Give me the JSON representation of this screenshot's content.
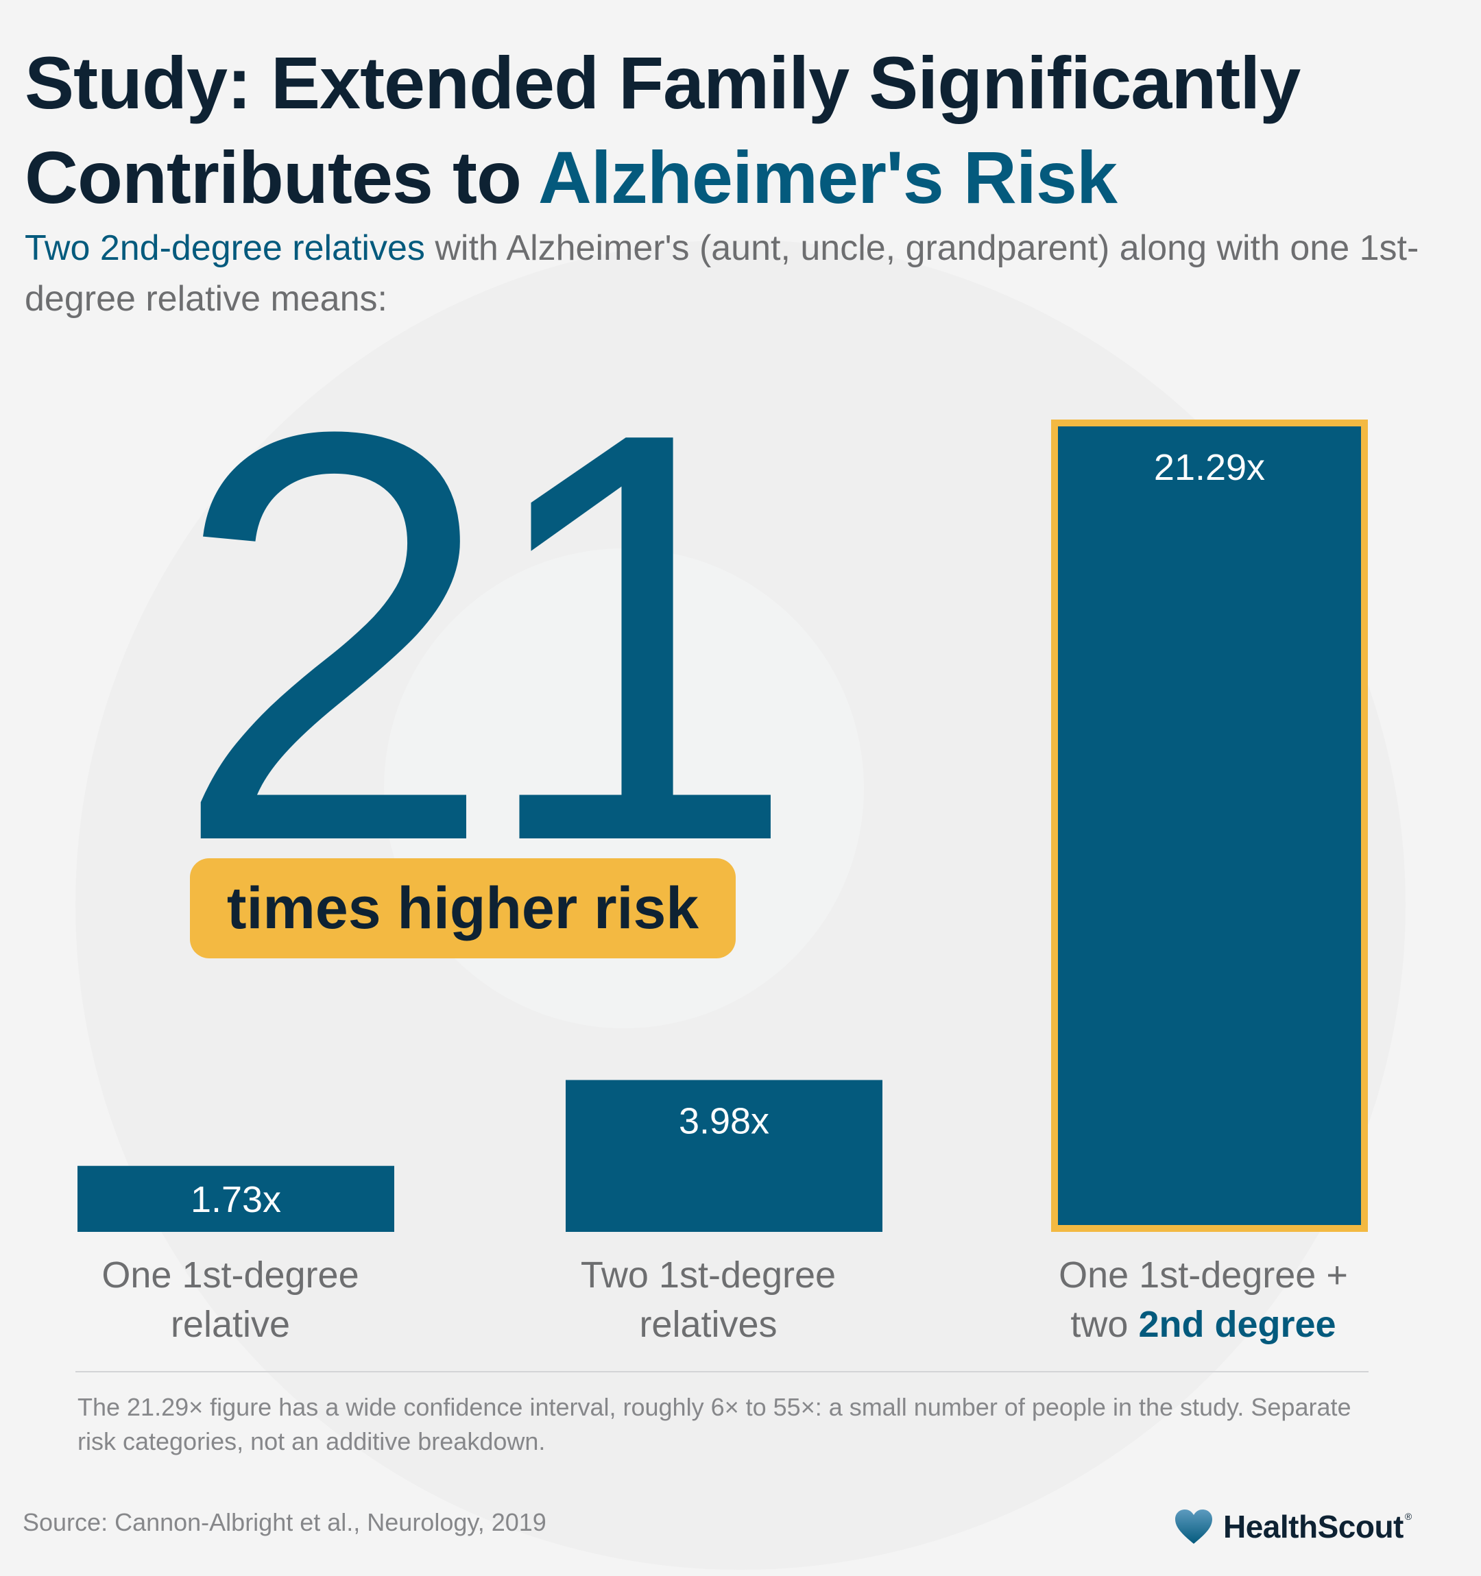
{
  "title": {
    "part1": "Study: Extended Family Significantly Contributes to ",
    "part2": "Alzheimer's Risk"
  },
  "subtitle": {
    "highlight": "Two 2nd-degree relatives",
    "rest": " with Alzheimer's (aunt, uncle, grandparent) along with one 1st-degree relative means:"
  },
  "callout": {
    "big_number": "21",
    "pill_text": "times higher risk"
  },
  "colors": {
    "bar": "#045a7d",
    "highlight_border": "#f3b942",
    "accent": "#045a7d"
  },
  "chart_data": {
    "type": "bar",
    "categories": [
      "One 1st-degree relative",
      "Two 1st-degree relatives",
      "One 1st-degree + two 2nd degree"
    ],
    "values": [
      1.73,
      3.98,
      21.29
    ],
    "data_labels": [
      "1.73x",
      "3.98x",
      "21.29x"
    ],
    "highlighted_index": 2,
    "ylim": [
      0,
      21.29
    ],
    "grid": false,
    "legend": "none"
  },
  "labels": {
    "bar1": {
      "line1": "One 1st-degree",
      "line2": "relative"
    },
    "bar2": {
      "line1": "Two 1st-degree",
      "line2": "relatives"
    },
    "bar3": {
      "line1": "One 1st-degree +",
      "line2_plain": "two ",
      "line2_hl": "2nd degree"
    }
  },
  "footnote": "The 21.29× figure has a wide confidence interval, roughly 6× to 55×: a small number of people in the study. Separate risk categories, not an additive breakdown.",
  "source": "Source: Cannon-Albright et al., Neurology, 2019",
  "logo": {
    "icon": "heart-icon",
    "text": "HealthScout",
    "reg": "®"
  }
}
